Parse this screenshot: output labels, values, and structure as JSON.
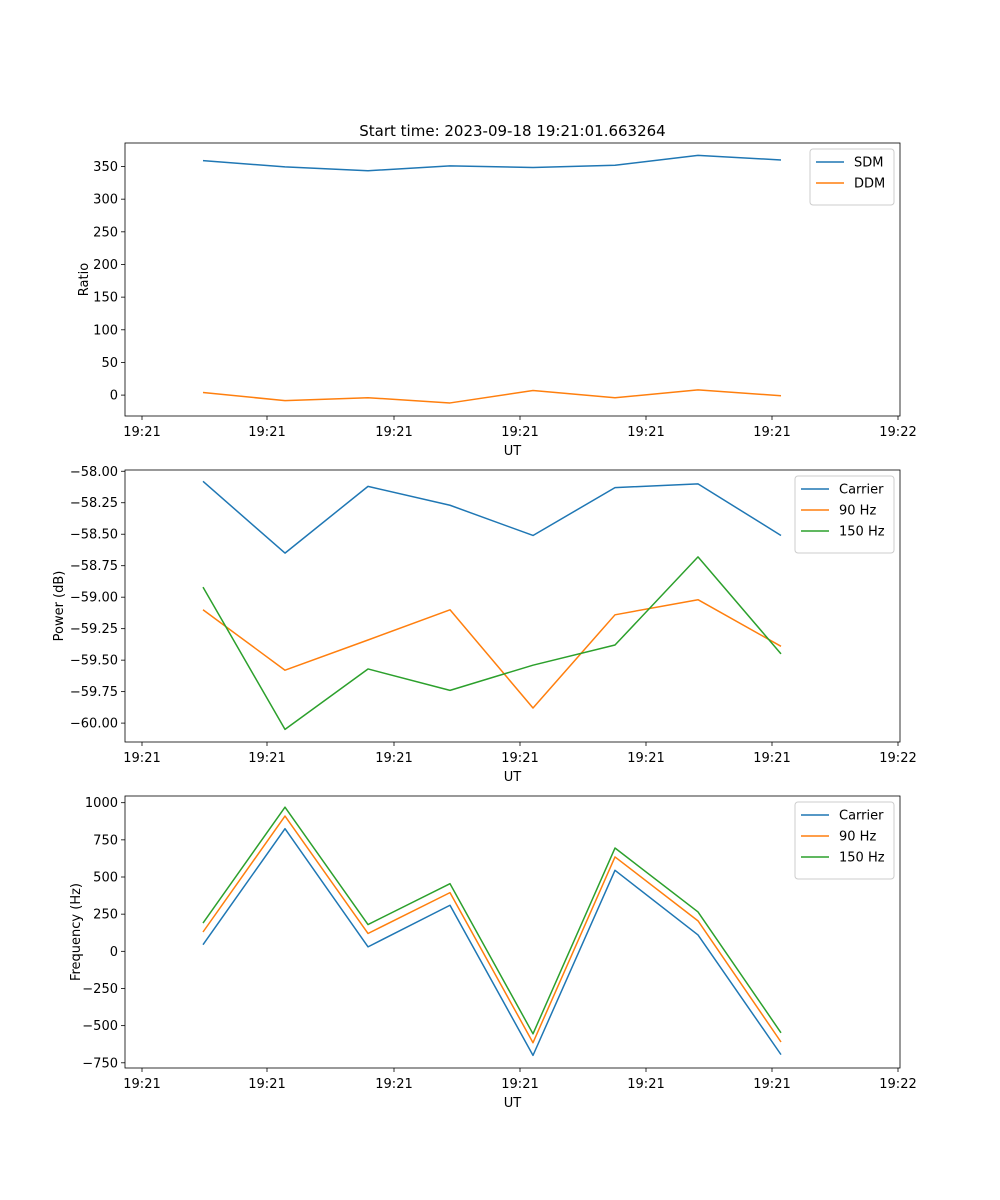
{
  "figure_title": "Start time: 2023-09-18 19:21:01.663264",
  "chart_data": [
    {
      "type": "line",
      "title": "Start time: 2023-09-18 19:21:01.663264",
      "xlabel": "UT",
      "ylabel": "Ratio",
      "x_ticks": [
        "19:21",
        "19:21",
        "19:21",
        "19:21",
        "19:21",
        "19:21",
        "19:22"
      ],
      "y_ticks": [
        "0",
        "50",
        "100",
        "150",
        "200",
        "250",
        "300",
        "350"
      ],
      "ylim": [
        -32,
        386
      ],
      "grid": false,
      "legend": "top-right",
      "series": [
        {
          "name": "SDM",
          "color": "#1f77b4",
          "values": [
            359,
            349.5,
            343.5,
            351,
            348.5,
            352,
            367,
            360
          ]
        },
        {
          "name": "DDM",
          "color": "#ff7f0e",
          "values": [
            4,
            -8.5,
            -4,
            -12,
            7,
            -4,
            8,
            -1
          ]
        }
      ]
    },
    {
      "type": "line",
      "title": "",
      "xlabel": "UT",
      "ylabel": "Power (dB)",
      "x_ticks": [
        "19:21",
        "19:21",
        "19:21",
        "19:21",
        "19:21",
        "19:21",
        "19:22"
      ],
      "y_ticks": [
        "−60.00",
        "−59.75",
        "−59.50",
        "−59.25",
        "−59.00",
        "−58.75",
        "−58.50",
        "−58.25",
        "−58.00"
      ],
      "ylim": [
        -60.15,
        -57.99
      ],
      "grid": false,
      "legend": "top-right",
      "series": [
        {
          "name": "Carrier",
          "color": "#1f77b4",
          "values": [
            -58.08,
            -58.65,
            -58.12,
            -58.27,
            -58.51,
            -58.13,
            -58.1,
            -58.51
          ]
        },
        {
          "name": "90 Hz",
          "color": "#ff7f0e",
          "values": [
            -59.1,
            -59.58,
            -59.34,
            -59.1,
            -59.88,
            -59.14,
            -59.02,
            -59.39
          ]
        },
        {
          "name": "150 Hz",
          "color": "#2ca02c",
          "values": [
            -58.92,
            -60.05,
            -59.57,
            -59.74,
            -59.54,
            -59.38,
            -58.68,
            -59.45
          ]
        }
      ]
    },
    {
      "type": "line",
      "title": "",
      "xlabel": "UT",
      "ylabel": "Frequency (Hz)",
      "x_ticks": [
        "19:21",
        "19:21",
        "19:21",
        "19:21",
        "19:21",
        "19:21",
        "19:22"
      ],
      "y_ticks": [
        "−750",
        "−500",
        "−250",
        "0",
        "250",
        "500",
        "750",
        "1000"
      ],
      "ylim": [
        -785,
        1045
      ],
      "grid": false,
      "legend": "top-right",
      "series": [
        {
          "name": "Carrier",
          "color": "#1f77b4",
          "values": [
            45,
            825,
            30,
            310,
            -700,
            545,
            110,
            -695
          ]
        },
        {
          "name": "90 Hz",
          "color": "#ff7f0e",
          "values": [
            130,
            910,
            120,
            395,
            -615,
            635,
            205,
            -610
          ]
        },
        {
          "name": "150 Hz",
          "color": "#2ca02c",
          "values": [
            190,
            970,
            180,
            455,
            -555,
            695,
            265,
            -548
          ]
        }
      ]
    }
  ]
}
